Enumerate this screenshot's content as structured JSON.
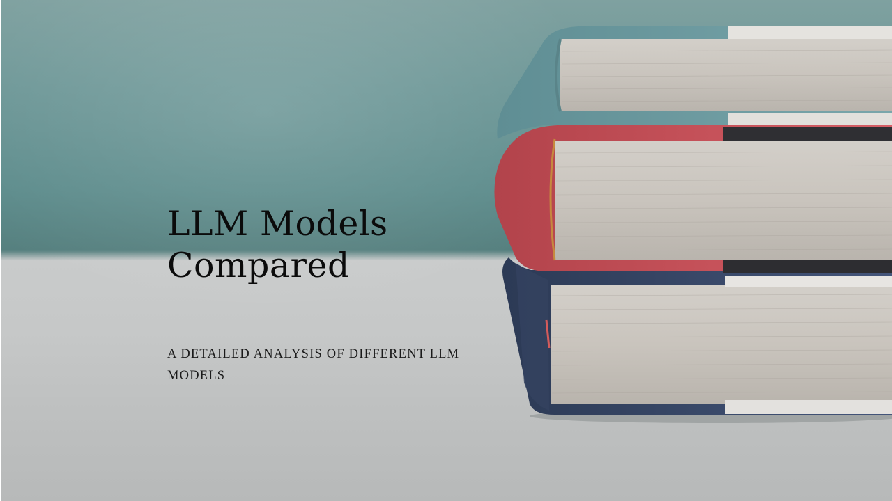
{
  "slide": {
    "title": "LLM Models Compared",
    "subtitle": "A DETAILED ANALYSIS OF DIFFERENT LLM MODELS"
  },
  "image": {
    "subject": "stack-of-books",
    "book_colors": [
      "#6f9aa0",
      "#c9545b",
      "#3a4a68"
    ]
  },
  "colors": {
    "title_text": "#0b0b0b",
    "subtitle_text": "#1a1a1a",
    "backdrop_teal": "#5f8d8c",
    "table_surface": "#c6c8c8"
  }
}
